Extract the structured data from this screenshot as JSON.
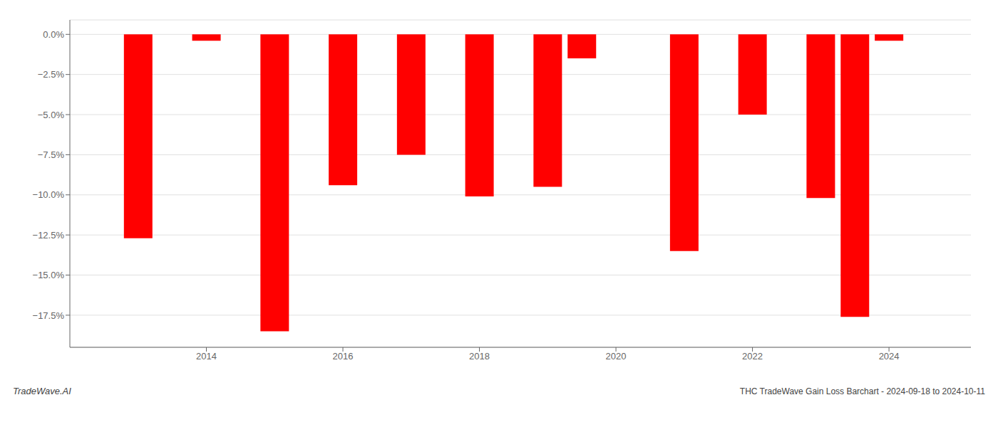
{
  "chart_data": {
    "type": "bar",
    "title": "THC TradeWave Gain Loss Barchart - 2024-09-18 to 2024-10-11",
    "annotations": [
      "TradeWave.AI"
    ],
    "x": [
      2013,
      2014,
      2015,
      2016,
      2017,
      2018,
      2019,
      2019.5,
      2021,
      2022,
      2023,
      2023.5,
      2024
    ],
    "values": [
      -12.7,
      -0.4,
      -18.5,
      -9.4,
      -7.5,
      -10.1,
      -9.5,
      -1.5,
      -13.5,
      -5.0,
      -10.2,
      -17.6,
      -0.4
    ],
    "color": "#ff0000",
    "xlim": [
      2012.0,
      2025.2
    ],
    "xticks": [
      2014,
      2016,
      2018,
      2020,
      2022,
      2024
    ],
    "ylim": [
      -19.5,
      0.9
    ],
    "yticks": [
      {
        "value": 0.0,
        "label": "0.0%"
      },
      {
        "value": -2.5,
        "label": "−2.5%"
      },
      {
        "value": -5.0,
        "label": "−5.0%"
      },
      {
        "value": -7.5,
        "label": "−7.5%"
      },
      {
        "value": -10.0,
        "label": "−10.0%"
      },
      {
        "value": -12.5,
        "label": "−12.5%"
      },
      {
        "value": -15.0,
        "label": "−15.0%"
      },
      {
        "value": -17.5,
        "label": "−17.5%"
      }
    ],
    "grid": true
  }
}
